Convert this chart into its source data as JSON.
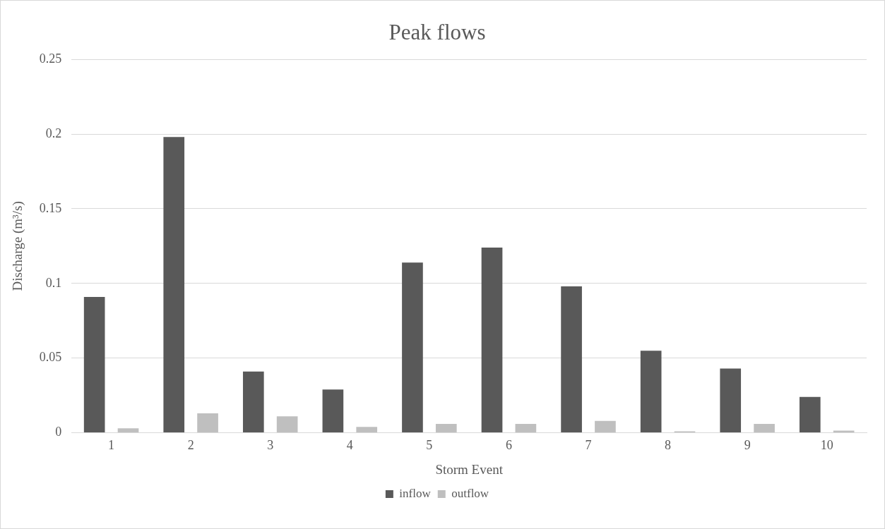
{
  "chart_data": {
    "type": "bar",
    "title": "Peak flows",
    "xlabel": "Storm Event",
    "ylabel": "Discharge (m³/s)",
    "categories": [
      "1",
      "2",
      "3",
      "4",
      "5",
      "6",
      "7",
      "8",
      "9",
      "10"
    ],
    "series": [
      {
        "name": "inflow",
        "color": "#595959",
        "values": [
          0.091,
          0.198,
          0.041,
          0.029,
          0.114,
          0.124,
          0.098,
          0.055,
          0.043,
          0.024
        ]
      },
      {
        "name": "outflow",
        "color": "#bfbfbf",
        "values": [
          0.003,
          0.013,
          0.011,
          0.004,
          0.006,
          0.006,
          0.008,
          0.001,
          0.006,
          0.0015
        ]
      }
    ],
    "ylim": [
      0,
      0.25
    ],
    "yticks": [
      0,
      0.05,
      0.1,
      0.15,
      0.2,
      0.25
    ],
    "grid": "y",
    "legend": "bottom"
  }
}
